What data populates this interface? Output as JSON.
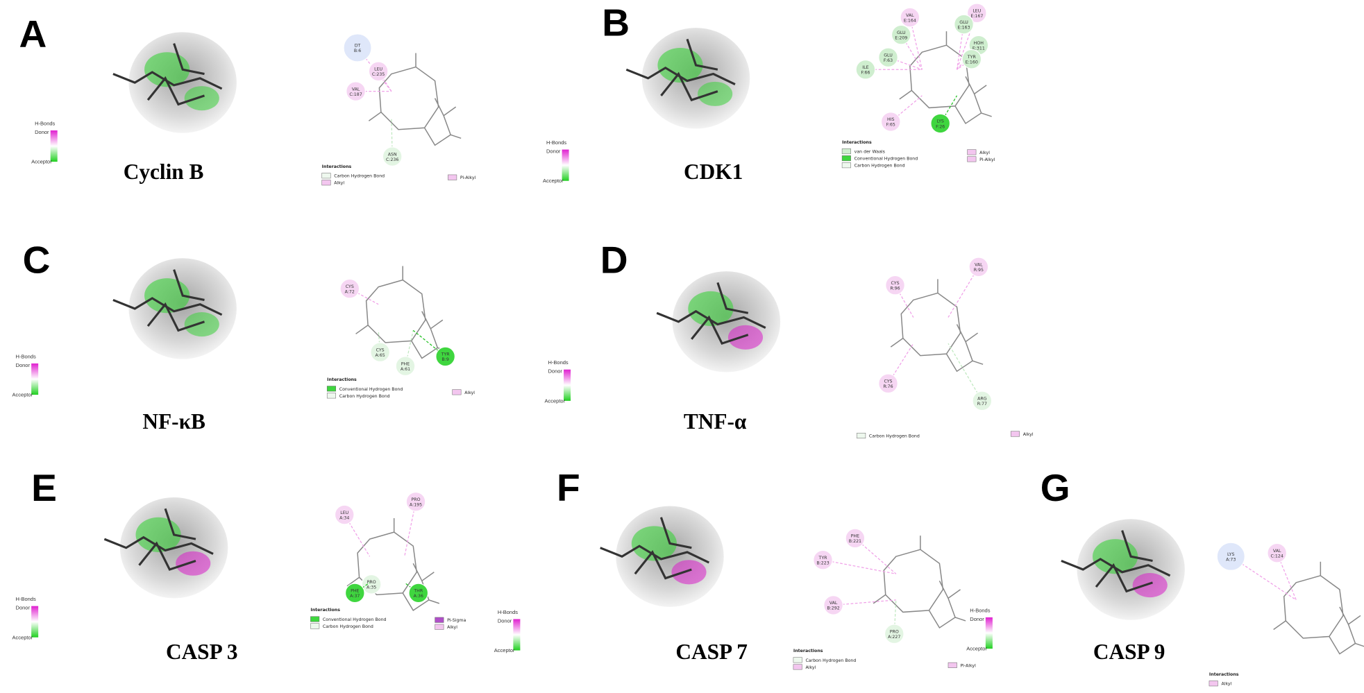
{
  "panels": [
    {
      "letter": "A",
      "name": "Cyclin B",
      "scales": [
        [
          "H-Bonds",
          "Donor",
          "Acceptor"
        ],
        [
          "H-Bonds",
          "Donor",
          "Acceptor"
        ]
      ],
      "residues": [
        {
          "label": [
            "DT",
            "B:6"
          ],
          "color": "#dfe7fa"
        },
        {
          "label": [
            "LEU",
            "C:235"
          ],
          "color": "#f6d6f3"
        },
        {
          "label": [
            "VAL",
            "C:187"
          ],
          "color": "#f6d6f3"
        },
        {
          "label": [
            "ASN",
            "C:236"
          ],
          "color": "#e3f5e3"
        }
      ],
      "legend_title": "Interactions",
      "legend": [
        {
          "label": "Carbon Hydrogen Bond",
          "color": "#eef8ee"
        },
        {
          "label": "Alkyl",
          "color": "#f3c6ef"
        },
        {
          "label": "Pi-Alkyl",
          "color": "#f3c6ef"
        }
      ]
    },
    {
      "letter": "B",
      "name": "CDK1",
      "scales": [],
      "residues": [
        {
          "label": [
            "VAL",
            "E:164"
          ],
          "color": "#f6d6f3"
        },
        {
          "label": [
            "LEU",
            "E:167"
          ],
          "color": "#f6d6f3"
        },
        {
          "label": [
            "GLU",
            "E:163"
          ],
          "color": "#cfeecf"
        },
        {
          "label": [
            "GLU",
            "E:209"
          ],
          "color": "#cfeecf"
        },
        {
          "label": [
            "HOH",
            "E:311"
          ],
          "color": "#cfeecf"
        },
        {
          "label": [
            "GLU",
            "F:63"
          ],
          "color": "#cfeecf"
        },
        {
          "label": [
            "TYR",
            "E:160"
          ],
          "color": "#cfeecf"
        },
        {
          "label": [
            "ILE",
            "F:66"
          ],
          "color": "#cfeecf"
        },
        {
          "label": [
            "HIS",
            "F:65"
          ],
          "color": "#f6d6f3"
        },
        {
          "label": [
            "LYS",
            "F:26"
          ],
          "color": "#3fd63f"
        }
      ],
      "legend_title": "Interactions",
      "legend": [
        {
          "label": "van der Waals",
          "color": "#cfeecf"
        },
        {
          "label": "Conventional Hydrogen Bond",
          "color": "#3fd63f"
        },
        {
          "label": "Carbon Hydrogen Bond",
          "color": "#eef8ee"
        },
        {
          "label": "Alkyl",
          "color": "#f3c6ef"
        },
        {
          "label": "Pi-Alkyl",
          "color": "#f3c6ef"
        }
      ]
    },
    {
      "letter": "C",
      "name": "NF-κB",
      "scales": [
        [
          "H-Bonds",
          "Donor",
          "Acceptor"
        ]
      ],
      "residues": [
        {
          "label": [
            "CYS",
            "A:72"
          ],
          "color": "#f6d6f3"
        },
        {
          "label": [
            "CYS",
            "A:65"
          ],
          "color": "#e3f5e3"
        },
        {
          "label": [
            "PHE",
            "A:61"
          ],
          "color": "#e3f5e3"
        },
        {
          "label": [
            "TYR",
            "B:9"
          ],
          "color": "#3fd63f"
        }
      ],
      "legend_title": "Interactions",
      "legend": [
        {
          "label": "Conventional Hydrogen Bond",
          "color": "#3fd63f"
        },
        {
          "label": "Carbon Hydrogen Bond",
          "color": "#eef8ee"
        },
        {
          "label": "Alkyl",
          "color": "#f3c6ef"
        }
      ]
    },
    {
      "letter": "D",
      "name": "TNF-α",
      "scales": [
        [
          "H-Bonds",
          "Donor",
          "Acceptor"
        ]
      ],
      "residues": [
        {
          "label": [
            "CYS",
            "R:96"
          ],
          "color": "#f6d6f3"
        },
        {
          "label": [
            "VAL",
            "R:95"
          ],
          "color": "#f6d6f3"
        },
        {
          "label": [
            "CYS",
            "R:76"
          ],
          "color": "#f6d6f3"
        },
        {
          "label": [
            "ARG",
            "R:77"
          ],
          "color": "#e3f5e3"
        }
      ],
      "legend_title": "",
      "legend": [
        {
          "label": "Carbon Hydrogen Bond",
          "color": "#eef8ee"
        },
        {
          "label": "Alkyl",
          "color": "#f3c6ef"
        }
      ]
    },
    {
      "letter": "E",
      "name": "CASP 3",
      "scales": [
        [
          "H-Bonds",
          "Donor",
          "Acceptor"
        ],
        [
          "H-Bonds",
          "Donor",
          "Acceptor"
        ]
      ],
      "residues": [
        {
          "label": [
            "LEU",
            "A:34"
          ],
          "color": "#f6d6f3"
        },
        {
          "label": [
            "PRO",
            "A:195"
          ],
          "color": "#f6d6f3"
        },
        {
          "label": [
            "PRO",
            "A:35"
          ],
          "color": "#e3f5e3"
        },
        {
          "label": [
            "PHE",
            "A:37"
          ],
          "color": "#3fd63f"
        },
        {
          "label": [
            "THR",
            "A:36"
          ],
          "color": "#3fd63f"
        }
      ],
      "legend_title": "Interactions",
      "legend": [
        {
          "label": "Conventional Hydrogen Bond",
          "color": "#3fd63f"
        },
        {
          "label": "Carbon Hydrogen Bond",
          "color": "#eef8ee"
        },
        {
          "label": "Pi-Sigma",
          "color": "#b04fc8"
        },
        {
          "label": "Alkyl",
          "color": "#f3c6ef"
        }
      ]
    },
    {
      "letter": "F",
      "name": "CASP 7",
      "scales": [
        [
          "H-Bonds",
          "Donor",
          "Acceptor"
        ]
      ],
      "residues": [
        {
          "label": [
            "PHE",
            "B:221"
          ],
          "color": "#f6d6f3"
        },
        {
          "label": [
            "TYR",
            "B:223"
          ],
          "color": "#f6d6f3"
        },
        {
          "label": [
            "VAL",
            "B:292"
          ],
          "color": "#f6d6f3"
        },
        {
          "label": [
            "PRO",
            "A:227"
          ],
          "color": "#e3f5e3"
        }
      ],
      "legend_title": "Interactions",
      "legend": [
        {
          "label": "Carbon Hydrogen Bond",
          "color": "#eef8ee"
        },
        {
          "label": "Alkyl",
          "color": "#f3c6ef"
        },
        {
          "label": "Pi-Alkyl",
          "color": "#f3c6ef"
        }
      ]
    },
    {
      "letter": "G",
      "name": "CASP 9",
      "scales": [],
      "residues": [
        {
          "label": [
            "LYS",
            "A:73"
          ],
          "color": "#dfe7fa"
        },
        {
          "label": [
            "VAL",
            "C:124"
          ],
          "color": "#f6d6f3"
        }
      ],
      "legend_title": "Interactions",
      "legend": [
        {
          "label": "Alkyl",
          "color": "#f3c6ef"
        }
      ]
    }
  ]
}
